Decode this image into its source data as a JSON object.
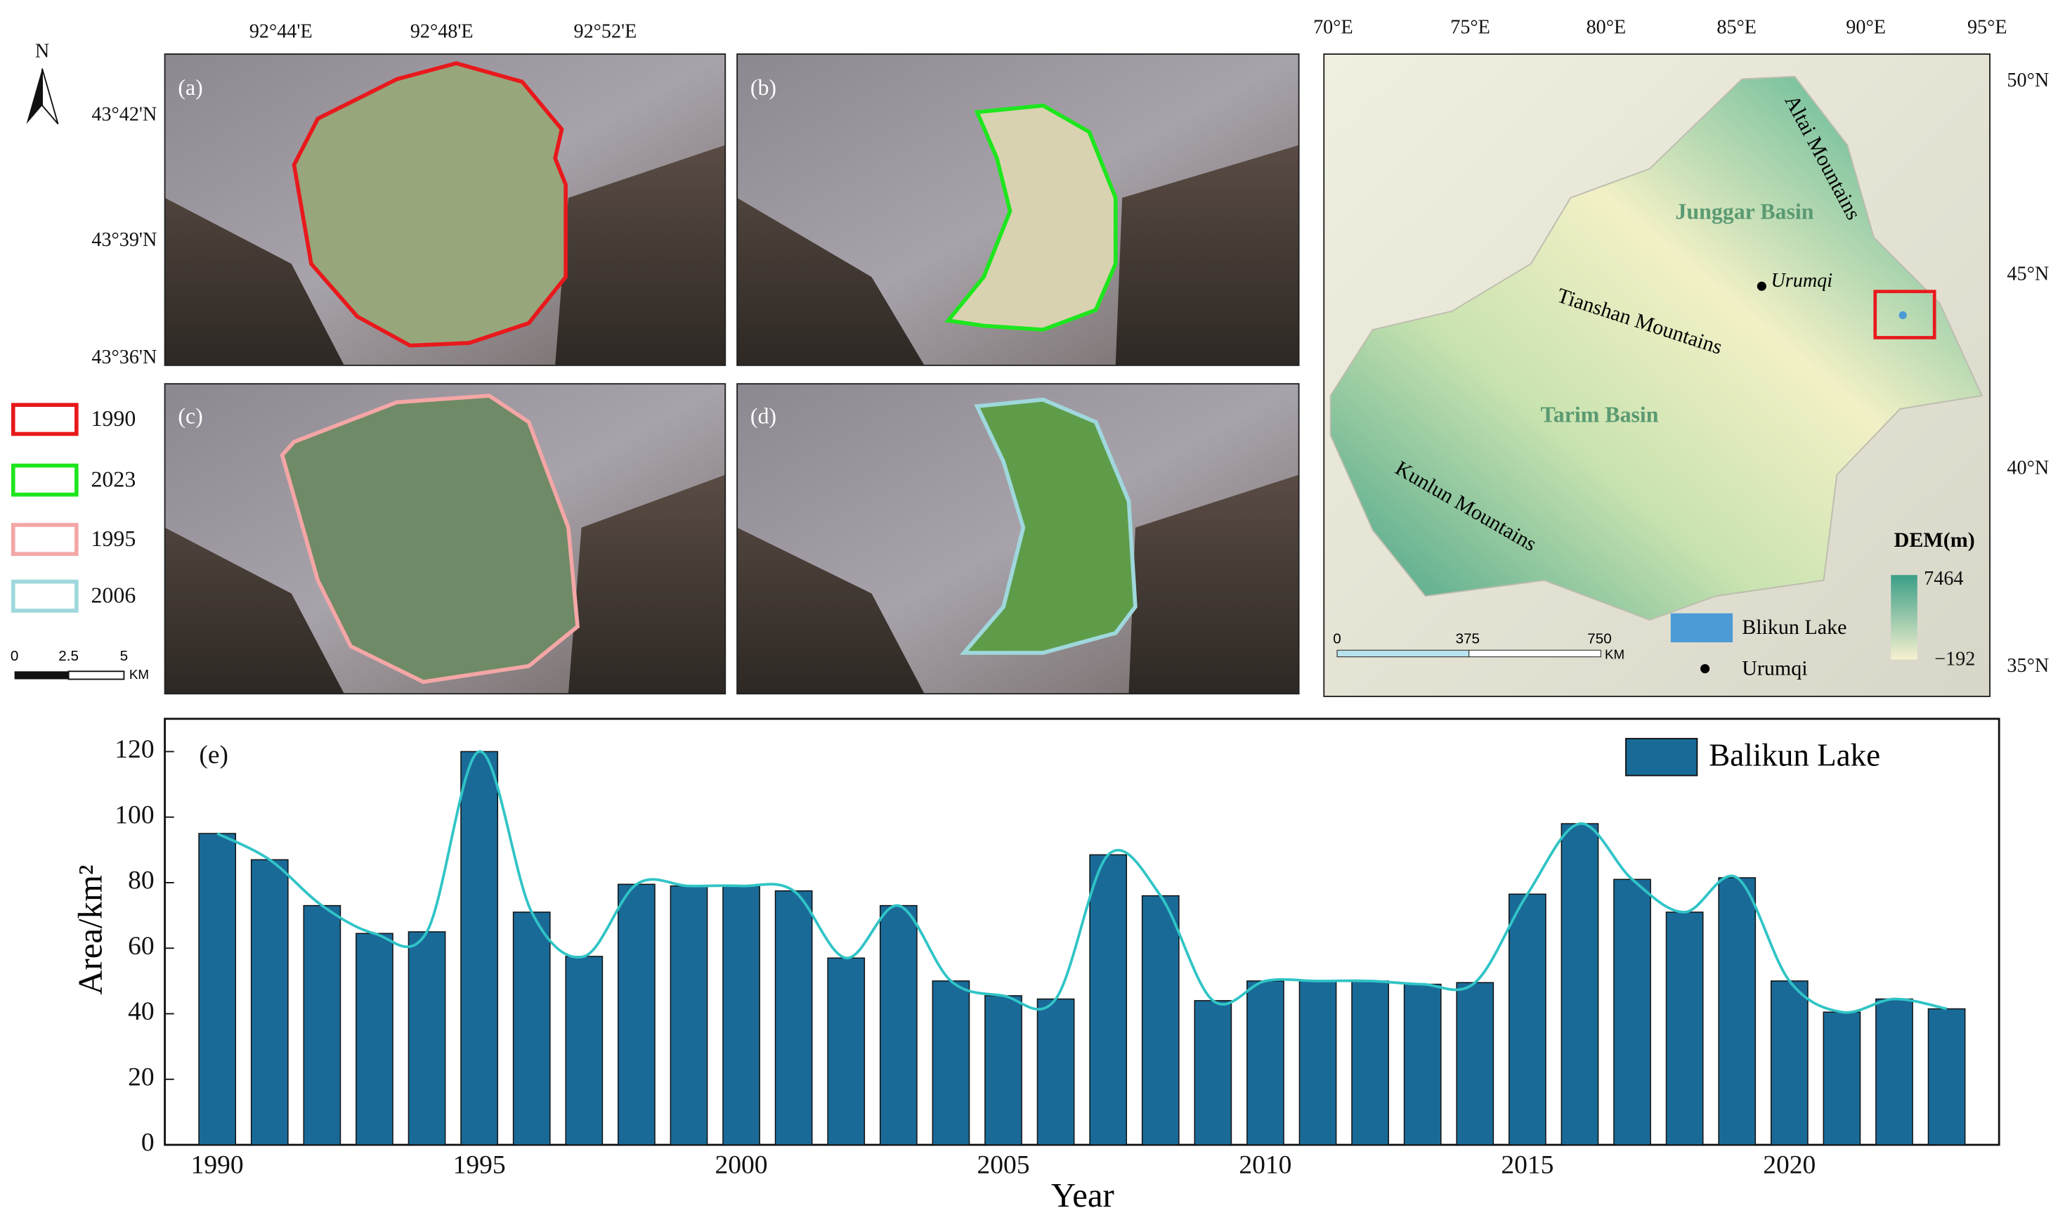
{
  "inset_maps": {
    "lon_labels": [
      "92°44'E",
      "92°48'E",
      "92°52'E"
    ],
    "lat_labels": [
      "43°42'N",
      "43°39'N",
      "43°36'N"
    ],
    "panels": [
      "(a)",
      "(b)",
      "(c)",
      "(d)"
    ],
    "legend": [
      {
        "label": "1990",
        "color": "#e8191c"
      },
      {
        "label": "2023",
        "color": "#1ee61e"
      },
      {
        "label": "1995",
        "color": "#f4a6a6"
      },
      {
        "label": "2006",
        "color": "#9fd8dc"
      }
    ],
    "scale_bar": [
      "0",
      "2.5",
      "5"
    ],
    "scale_unit": "KM",
    "north": "N"
  },
  "overview_map": {
    "lon_labels": [
      "70°E",
      "75°E",
      "80°E",
      "85°E",
      "90°E",
      "95°E"
    ],
    "lat_labels": [
      "50°N",
      "45°N",
      "40°N",
      "35°N"
    ],
    "places": [
      "Junggar Basin",
      "Tarim Basin",
      "Urumqi",
      "Tianshan Mountains",
      "Altai Mountains",
      "Kunlun Mountains"
    ],
    "legend": [
      {
        "label": "Blikun Lake",
        "color": "#4d9bd6"
      },
      {
        "label": "Urumqi",
        "color": "#000000"
      }
    ],
    "dem_title": "DEM(m)",
    "dem_max": "7464",
    "dem_min": "−192",
    "scale_bar": [
      "0",
      "375",
      "750"
    ],
    "scale_unit": "KM"
  },
  "chart_data": {
    "type": "bar",
    "panel_label": "(e)",
    "x_label": "Year",
    "y_label": "Area/km²",
    "x": [
      1990,
      1991,
      1992,
      1993,
      1994,
      1995,
      1996,
      1997,
      1998,
      1999,
      2000,
      2001,
      2002,
      2003,
      2004,
      2005,
      2006,
      2007,
      2008,
      2009,
      2010,
      2011,
      2012,
      2013,
      2014,
      2015,
      2016,
      2017,
      2018,
      2019,
      2020,
      2021,
      2022,
      2023
    ],
    "series": [
      {
        "name": "Balikun Lake",
        "color": "#1a6a98",
        "line_color": "#30c4c6",
        "values": [
          95,
          87,
          73,
          64.5,
          65,
          120,
          71,
          57.5,
          79.5,
          79,
          79,
          77.5,
          57,
          73,
          50,
          45.5,
          44.5,
          88.5,
          76,
          44,
          50,
          50,
          50,
          49,
          49.5,
          76.5,
          98,
          81,
          71,
          81.5,
          50,
          40.5,
          44.5,
          41.5
        ]
      }
    ],
    "xlim": [
      1989,
      2024
    ],
    "xticks": [
      1990,
      1995,
      2000,
      2005,
      2010,
      2015,
      2020
    ],
    "ylim": [
      0,
      130
    ],
    "yticks": [
      0,
      20,
      40,
      60,
      80,
      100,
      120
    ],
    "smooth_line": true,
    "legend": "upper right"
  }
}
